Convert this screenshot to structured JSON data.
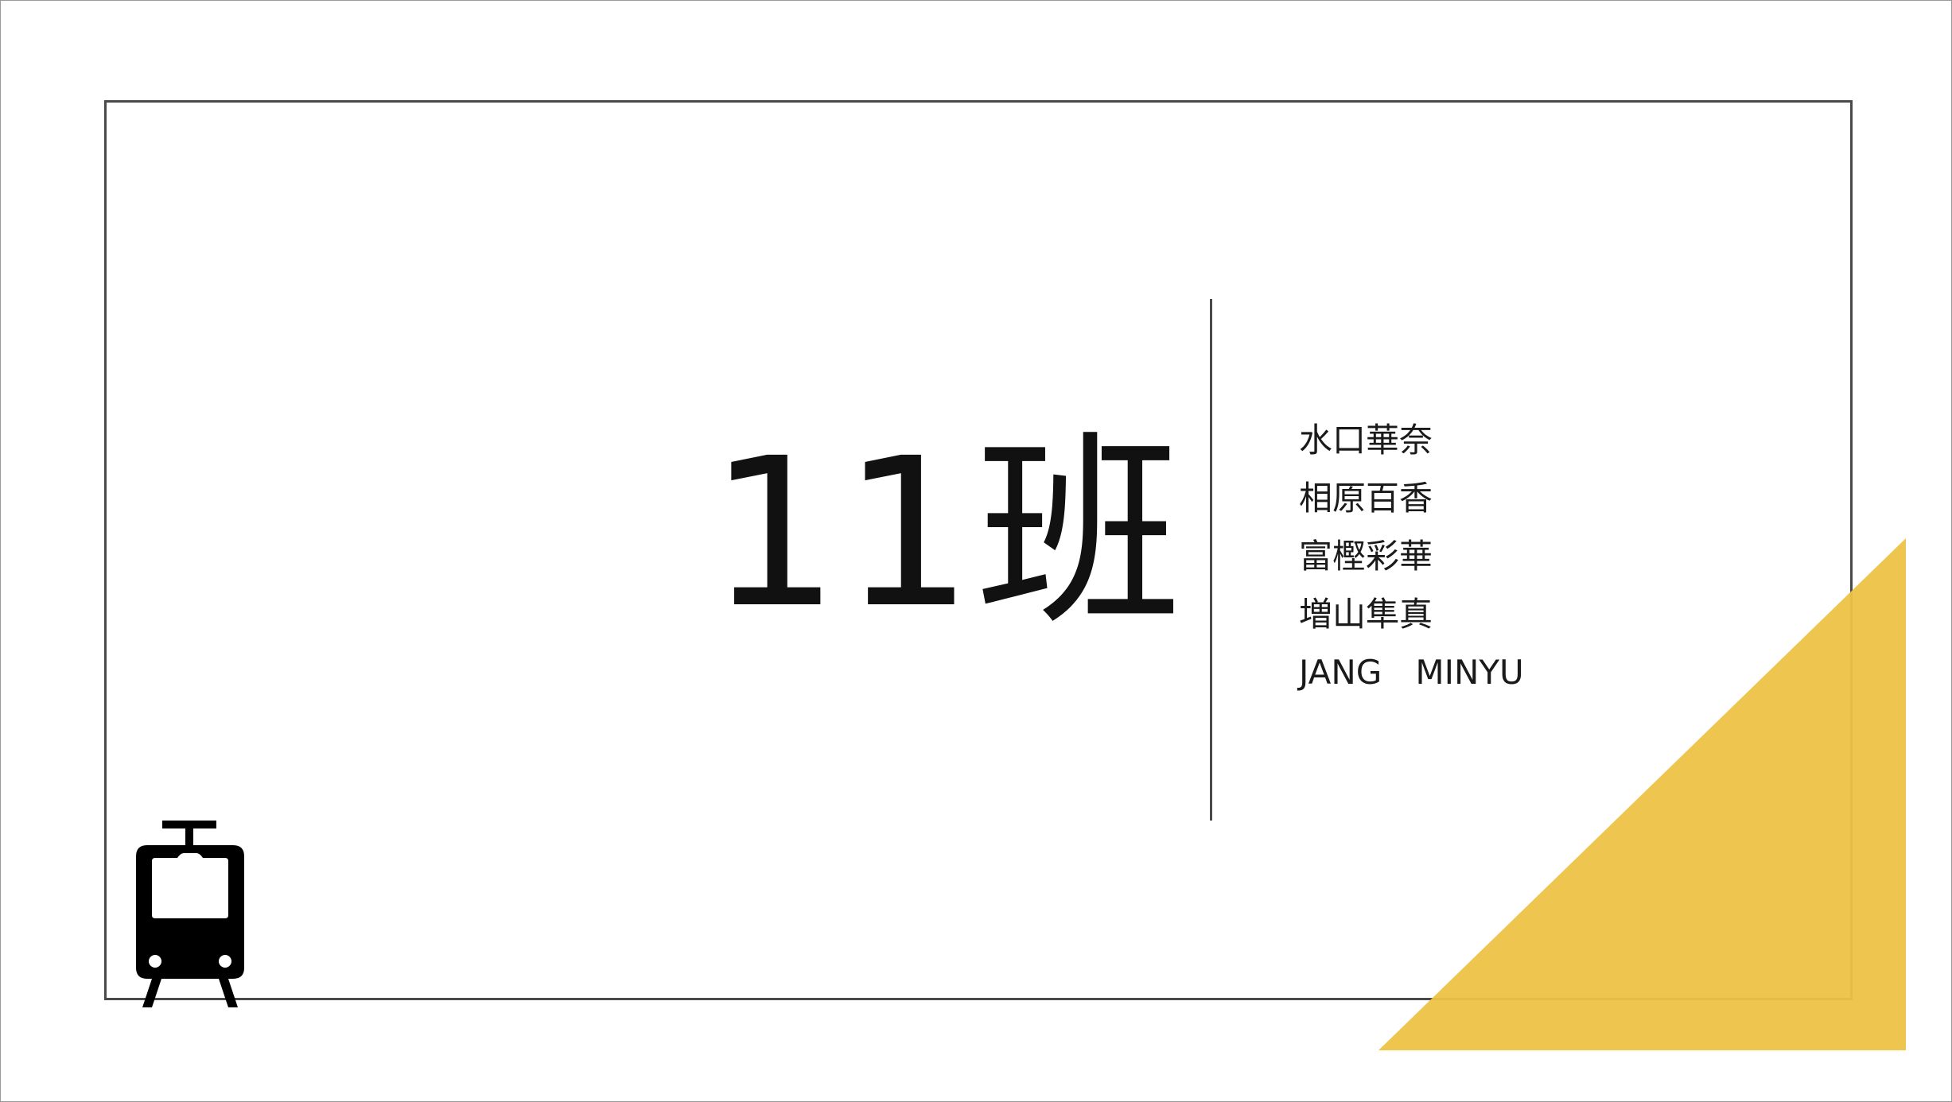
{
  "slide": {
    "title": "11班",
    "members": [
      "水口華奈",
      "相原百香",
      "富樫彩華",
      "増山隼真",
      "JANG　MINYU"
    ],
    "icon": "tram-icon"
  },
  "colors": {
    "accent": "#EDC244",
    "frame": "#4A4A4A",
    "text": "#111111",
    "background": "#FFFFFF"
  }
}
